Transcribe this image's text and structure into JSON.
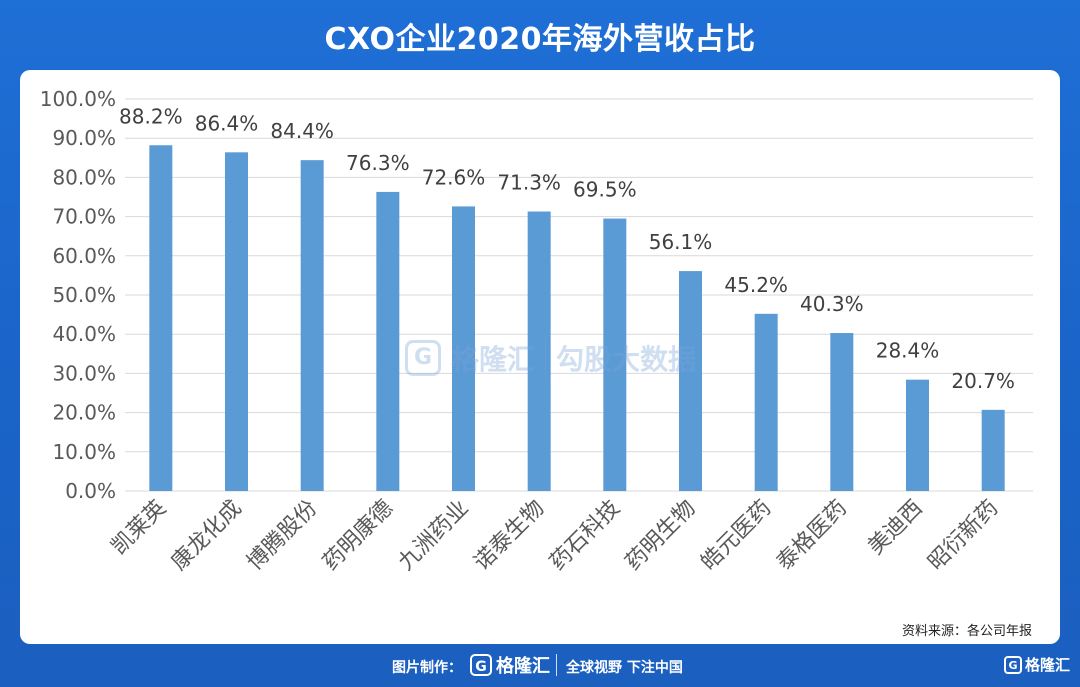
{
  "header": {
    "title": "CXO企业2020年海外营收占比"
  },
  "watermark": {
    "brand": "格隆汇",
    "product": "勾股大数据",
    "icon_name": "gelonghui-logo-icon"
  },
  "source_note": "资料来源：各公司年报",
  "footer": {
    "made_by_label": "图片制作：",
    "brand": "格隆汇",
    "slogan": "全球视野 下注中国",
    "corner_brand": "格隆汇",
    "icon_name": "gelonghui-logo-icon"
  },
  "colors": {
    "background": "#1e6fd6",
    "bar": "#5b9bd5",
    "grid": "#d9d9d9",
    "text": "#595959"
  },
  "chart_data": {
    "type": "bar",
    "categories": [
      "凯莱英",
      "康龙化成",
      "博腾股份",
      "药明康德",
      "九洲药业",
      "诺泰生物",
      "药石科技",
      "药明生物",
      "皓元医药",
      "泰格医药",
      "美迪西",
      "昭衍新药"
    ],
    "values": [
      88.2,
      86.4,
      84.4,
      76.3,
      72.6,
      71.3,
      69.5,
      56.1,
      45.2,
      40.3,
      28.4,
      20.7
    ],
    "data_labels": [
      "88.2%",
      "86.4%",
      "84.4%",
      "76.3%",
      "72.6%",
      "71.3%",
      "69.5%",
      "56.1%",
      "45.2%",
      "40.3%",
      "28.4%",
      "20.7%"
    ],
    "yticks": [
      "0.0%",
      "10.0%",
      "20.0%",
      "30.0%",
      "40.0%",
      "50.0%",
      "60.0%",
      "70.0%",
      "80.0%",
      "90.0%",
      "100.0%"
    ],
    "ylim": [
      0,
      100
    ],
    "grid": true,
    "legend": "none",
    "title": "CXO企业2020年海外营收占比",
    "xlabel": "",
    "ylabel": ""
  }
}
